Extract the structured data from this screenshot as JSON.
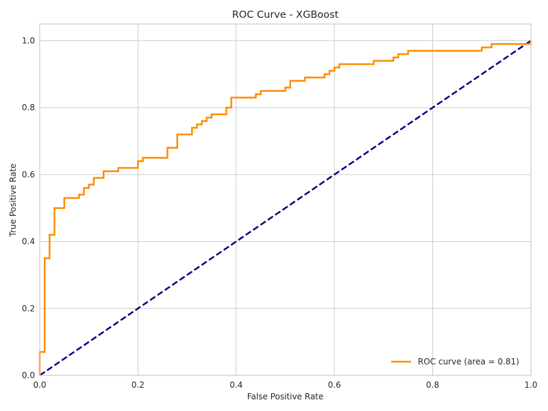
{
  "chart_data": {
    "type": "line",
    "title": "ROC Curve - XGBoost",
    "xlabel": "False Positive Rate",
    "ylabel": "True Positive Rate",
    "xlim": [
      0.0,
      1.0
    ],
    "ylim": [
      0.0,
      1.05
    ],
    "xticks": [
      0.0,
      0.2,
      0.4,
      0.6,
      0.8,
      1.0
    ],
    "xtick_labels": [
      "0.0",
      "0.2",
      "0.4",
      "0.6",
      "0.8",
      "1.0"
    ],
    "yticks": [
      0.0,
      0.2,
      0.4,
      0.6,
      0.8,
      1.0
    ],
    "ytick_labels": [
      "0.0",
      "0.2",
      "0.4",
      "0.6",
      "0.8",
      "1.0"
    ],
    "grid": true,
    "legend_position": "lower-right",
    "series": [
      {
        "name": "ROC curve (area = 0.81)",
        "color": "#ff8c00",
        "style": "solid-step",
        "points": [
          [
            0.0,
            0.0
          ],
          [
            0.0,
            0.07
          ],
          [
            0.01,
            0.07
          ],
          [
            0.01,
            0.35
          ],
          [
            0.02,
            0.35
          ],
          [
            0.02,
            0.42
          ],
          [
            0.03,
            0.42
          ],
          [
            0.03,
            0.5
          ],
          [
            0.05,
            0.5
          ],
          [
            0.05,
            0.53
          ],
          [
            0.08,
            0.53
          ],
          [
            0.08,
            0.54
          ],
          [
            0.09,
            0.54
          ],
          [
            0.09,
            0.56
          ],
          [
            0.1,
            0.56
          ],
          [
            0.1,
            0.57
          ],
          [
            0.11,
            0.57
          ],
          [
            0.11,
            0.59
          ],
          [
            0.13,
            0.59
          ],
          [
            0.13,
            0.61
          ],
          [
            0.16,
            0.61
          ],
          [
            0.16,
            0.62
          ],
          [
            0.2,
            0.62
          ],
          [
            0.2,
            0.64
          ],
          [
            0.21,
            0.64
          ],
          [
            0.21,
            0.65
          ],
          [
            0.26,
            0.65
          ],
          [
            0.26,
            0.68
          ],
          [
            0.28,
            0.68
          ],
          [
            0.28,
            0.72
          ],
          [
            0.31,
            0.72
          ],
          [
            0.31,
            0.74
          ],
          [
            0.32,
            0.74
          ],
          [
            0.32,
            0.75
          ],
          [
            0.33,
            0.75
          ],
          [
            0.33,
            0.76
          ],
          [
            0.34,
            0.76
          ],
          [
            0.34,
            0.77
          ],
          [
            0.35,
            0.77
          ],
          [
            0.35,
            0.78
          ],
          [
            0.38,
            0.78
          ],
          [
            0.38,
            0.8
          ],
          [
            0.39,
            0.8
          ],
          [
            0.39,
            0.83
          ],
          [
            0.44,
            0.83
          ],
          [
            0.44,
            0.84
          ],
          [
            0.45,
            0.84
          ],
          [
            0.45,
            0.85
          ],
          [
            0.5,
            0.85
          ],
          [
            0.5,
            0.86
          ],
          [
            0.51,
            0.86
          ],
          [
            0.51,
            0.88
          ],
          [
            0.54,
            0.88
          ],
          [
            0.54,
            0.89
          ],
          [
            0.58,
            0.89
          ],
          [
            0.58,
            0.9
          ],
          [
            0.59,
            0.9
          ],
          [
            0.59,
            0.91
          ],
          [
            0.6,
            0.91
          ],
          [
            0.6,
            0.92
          ],
          [
            0.61,
            0.92
          ],
          [
            0.61,
            0.93
          ],
          [
            0.68,
            0.93
          ],
          [
            0.68,
            0.94
          ],
          [
            0.72,
            0.94
          ],
          [
            0.72,
            0.95
          ],
          [
            0.73,
            0.95
          ],
          [
            0.73,
            0.96
          ],
          [
            0.75,
            0.96
          ],
          [
            0.75,
            0.97
          ],
          [
            0.9,
            0.97
          ],
          [
            0.9,
            0.98
          ],
          [
            0.92,
            0.98
          ],
          [
            0.92,
            0.99
          ],
          [
            1.0,
            0.99
          ],
          [
            1.0,
            1.0
          ]
        ]
      },
      {
        "color": "#000080",
        "style": "dashed",
        "points": [
          [
            0.0,
            0.0
          ],
          [
            1.0,
            1.0
          ]
        ]
      }
    ],
    "colors": {
      "grid": "#cccccc",
      "axes_edge": "#cccccc",
      "text": "#262626",
      "background": "#ffffff"
    }
  }
}
